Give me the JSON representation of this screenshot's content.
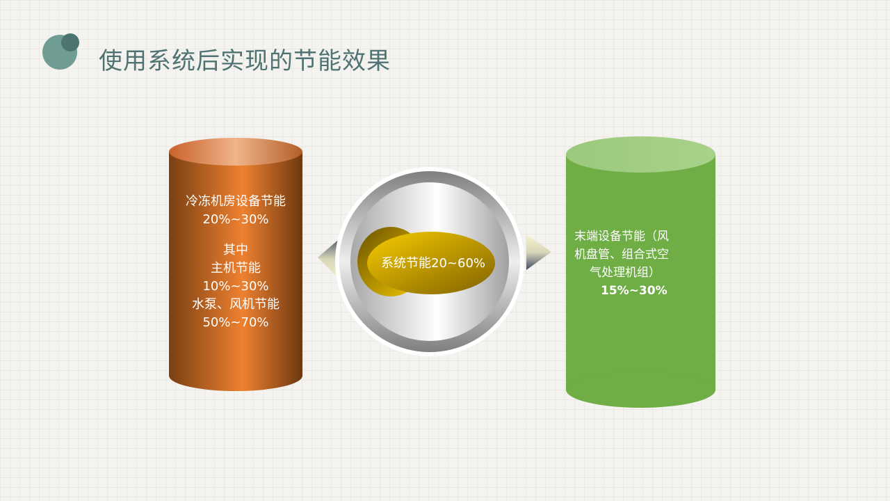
{
  "title": "使用系统后实现的节能效果",
  "left_cylinder": {
    "heading": "冷冻机房设备节能",
    "heading_value": "20%~30%",
    "sub_heading": "其中",
    "item1_label": "主机节能",
    "item1_value": "10%~30%",
    "item2_label": "水泵、风机节能",
    "item2_value": "50%~70%",
    "color": "#e87a2a"
  },
  "center": {
    "label": "系统节能20~60%",
    "color": "#e0b800"
  },
  "right_cylinder": {
    "line1": "末端设备节能（风",
    "line2": "机盘管、组合式空",
    "line3": "气处理机组）",
    "value": "15%~30%",
    "color": "#6fad45"
  }
}
